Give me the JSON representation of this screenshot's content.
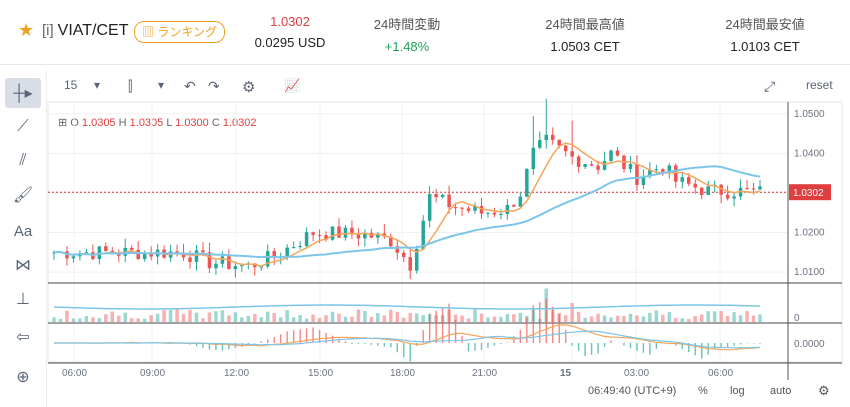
{
  "header": {
    "pair_tag": "[i]",
    "pair": "VIAT/CET",
    "ranking": "ランキング",
    "price": "1.0302",
    "price_usd": "0.0295 USD",
    "change_label": "24時間変動",
    "change_value": "+1.48%",
    "high_label": "24時間最高値",
    "high_value": "1.0503 CET",
    "low_label": "24時間最安値",
    "low_value": "1.0103 CET"
  },
  "toolbar": {
    "interval": "15",
    "reset": "reset"
  },
  "legend": {
    "o_label": "O",
    "o": "1.0305",
    "h_label": "H",
    "h": "1.0305",
    "l_label": "L",
    "l": "1.0300",
    "c_label": "C",
    "c": "1.0302"
  },
  "price_axis": {
    "ticks": [
      "1.0500",
      "1.0400",
      "1.0300",
      "1.0200",
      "1.0100"
    ],
    "current": "1.0302",
    "volume_zero": "0",
    "macd_zero": "0.0000"
  },
  "time_axis": [
    "06:00",
    "09:00",
    "12:00",
    "15:00",
    "18:00",
    "21:00",
    "15",
    "03:00",
    "06:00"
  ],
  "bottom_bar": {
    "clock": "06:49:40 (UTC+9)",
    "percent": "%",
    "log": "log",
    "auto": "auto"
  },
  "colors": {
    "up": "#26a69a",
    "down": "#ef5350",
    "ma_fast": "#f5a55a",
    "ma_slow": "#7cc5e8",
    "accent": "#f0a020"
  }
}
